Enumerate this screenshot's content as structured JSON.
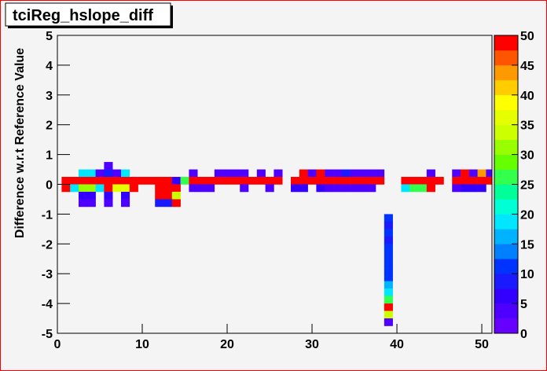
{
  "chart_data": {
    "type": "heatmap",
    "title": "tciReg_hslope_diff",
    "y_label": "Difference w.r.t Reference Value",
    "xlim": [
      0,
      51.2
    ],
    "ylim": [
      -5,
      5
    ],
    "zlim": [
      0,
      50
    ],
    "xticks": [
      0,
      10,
      20,
      30,
      40,
      50
    ],
    "yticks": [
      -5,
      -4,
      -3,
      -2,
      -1,
      0,
      1,
      2,
      3,
      4,
      5
    ],
    "zticks": [
      0,
      5,
      10,
      15,
      20,
      25,
      30,
      35,
      40,
      45,
      50
    ],
    "palette": [
      "#6600ff",
      "#4d00ff",
      "#3300ff",
      "#1a1aff",
      "#0033ff",
      "#0080ff",
      "#00b3ff",
      "#00e6ff",
      "#00ffd5",
      "#00ff99",
      "#33ff4d",
      "#66ff00",
      "#99ff00",
      "#ccff00",
      "#e6ff00",
      "#ffff00",
      "#ffcc00",
      "#ff9900",
      "#ff5500",
      "#ff0000"
    ],
    "cells": [
      [
        5.5,
        0.5,
        3
      ],
      [
        2.5,
        0.25,
        18
      ],
      [
        3.5,
        0.25,
        18
      ],
      [
        4.5,
        0.25,
        4
      ],
      [
        5.5,
        0.25,
        8
      ],
      [
        6.5,
        0.25,
        4
      ],
      [
        7.5,
        0.25,
        18
      ],
      [
        15.5,
        0.25,
        3
      ],
      [
        18.5,
        0.25,
        3
      ],
      [
        19.5,
        0.25,
        3
      ],
      [
        20.5,
        0.25,
        3
      ],
      [
        21.5,
        0.25,
        3
      ],
      [
        23.5,
        0.25,
        3
      ],
      [
        25.5,
        0.25,
        3
      ],
      [
        28.5,
        0.25,
        48
      ],
      [
        29.5,
        0.25,
        3
      ],
      [
        30.5,
        0.25,
        48
      ],
      [
        31.5,
        0.25,
        3
      ],
      [
        32.5,
        0.25,
        3
      ],
      [
        33.5,
        0.25,
        8
      ],
      [
        34.5,
        0.25,
        3
      ],
      [
        35.5,
        0.25,
        3
      ],
      [
        36.5,
        0.25,
        3
      ],
      [
        37.5,
        0.25,
        3
      ],
      [
        43.5,
        0.25,
        3
      ],
      [
        46.5,
        0.25,
        3
      ],
      [
        47.5,
        0.25,
        48
      ],
      [
        48.5,
        0.25,
        3
      ],
      [
        49.5,
        0.25,
        43
      ],
      [
        50.5,
        0.25,
        3
      ],
      [
        0.5,
        0,
        50
      ],
      [
        1.5,
        0,
        50
      ],
      [
        2.5,
        0,
        50
      ],
      [
        3.5,
        0,
        50
      ],
      [
        4.5,
        0,
        50
      ],
      [
        5.5,
        0,
        50
      ],
      [
        6.5,
        0,
        50
      ],
      [
        7.5,
        0,
        50
      ],
      [
        8.5,
        0,
        50
      ],
      [
        9.5,
        0,
        50
      ],
      [
        10.5,
        0,
        50
      ],
      [
        11.5,
        0,
        50
      ],
      [
        12.5,
        0,
        50
      ],
      [
        13.5,
        0,
        6
      ],
      [
        14.5,
        0,
        27
      ],
      [
        15.5,
        0,
        50
      ],
      [
        16.5,
        0,
        50
      ],
      [
        17.5,
        0,
        50
      ],
      [
        18.5,
        0,
        50
      ],
      [
        19.5,
        0,
        50
      ],
      [
        20.5,
        0,
        50
      ],
      [
        21.5,
        0,
        50
      ],
      [
        22.5,
        0,
        50
      ],
      [
        23.5,
        0,
        50
      ],
      [
        24.5,
        0,
        50
      ],
      [
        25.5,
        0,
        50
      ],
      [
        27.5,
        0,
        50
      ],
      [
        28.5,
        0,
        50
      ],
      [
        29.5,
        0,
        50
      ],
      [
        30.5,
        0,
        50
      ],
      [
        31.5,
        0,
        50
      ],
      [
        32.5,
        0,
        50
      ],
      [
        33.5,
        0,
        50
      ],
      [
        34.5,
        0,
        50
      ],
      [
        35.5,
        0,
        50
      ],
      [
        36.5,
        0,
        50
      ],
      [
        37.5,
        0,
        50
      ],
      [
        40.5,
        0,
        50
      ],
      [
        41.5,
        0,
        50
      ],
      [
        42.5,
        0,
        50
      ],
      [
        43.5,
        0,
        50
      ],
      [
        44.5,
        0,
        50
      ],
      [
        46.5,
        0,
        50
      ],
      [
        47.5,
        0,
        50
      ],
      [
        48.5,
        0,
        50
      ],
      [
        49.5,
        0,
        50
      ],
      [
        50.5,
        0,
        50
      ],
      [
        0.5,
        -0.25,
        50
      ],
      [
        1.5,
        -0.25,
        18
      ],
      [
        2.5,
        -0.25,
        32
      ],
      [
        3.5,
        -0.25,
        32
      ],
      [
        4.5,
        -0.25,
        18
      ],
      [
        5.5,
        -0.25,
        50
      ],
      [
        6.5,
        -0.25,
        36
      ],
      [
        7.5,
        -0.25,
        36
      ],
      [
        8.5,
        -0.25,
        50
      ],
      [
        11.5,
        -0.25,
        50
      ],
      [
        12.5,
        -0.25,
        50
      ],
      [
        13.5,
        -0.25,
        50
      ],
      [
        15.5,
        -0.25,
        3
      ],
      [
        16.5,
        -0.25,
        3
      ],
      [
        17.5,
        -0.25,
        3
      ],
      [
        21.5,
        -0.25,
        3
      ],
      [
        24.5,
        -0.25,
        3
      ],
      [
        27.5,
        -0.25,
        6
      ],
      [
        28.5,
        -0.25,
        6
      ],
      [
        30.5,
        -0.25,
        6
      ],
      [
        31.5,
        -0.25,
        3
      ],
      [
        32.5,
        -0.25,
        3
      ],
      [
        33.5,
        -0.25,
        3
      ],
      [
        34.5,
        -0.25,
        3
      ],
      [
        35.5,
        -0.25,
        3
      ],
      [
        36.5,
        -0.25,
        3
      ],
      [
        40.5,
        -0.25,
        18
      ],
      [
        41.5,
        -0.25,
        27
      ],
      [
        42.5,
        -0.25,
        27
      ],
      [
        43.5,
        -0.25,
        50
      ],
      [
        46.5,
        -0.25,
        3
      ],
      [
        47.5,
        -0.25,
        6
      ],
      [
        48.5,
        -0.25,
        6
      ],
      [
        49.5,
        -0.25,
        6
      ],
      [
        2.5,
        -0.5,
        6
      ],
      [
        3.5,
        -0.5,
        6
      ],
      [
        5.5,
        -0.5,
        6
      ],
      [
        7.5,
        -0.5,
        6
      ],
      [
        11.5,
        -0.5,
        50
      ],
      [
        12.5,
        -0.5,
        50
      ],
      [
        13.5,
        -0.5,
        33
      ],
      [
        2.5,
        -0.75,
        3
      ],
      [
        3.5,
        -0.75,
        3
      ],
      [
        5.5,
        -0.75,
        3
      ],
      [
        7.5,
        -0.75,
        3
      ],
      [
        11.5,
        -0.75,
        8
      ],
      [
        12.5,
        -0.75,
        8
      ],
      [
        13.5,
        -0.75,
        50
      ],
      [
        38.5,
        -1.25,
        10
      ],
      [
        38.5,
        -1.5,
        8
      ],
      [
        38.5,
        -1.75,
        10
      ],
      [
        38.5,
        -2,
        8
      ],
      [
        38.5,
        -2.25,
        10
      ],
      [
        38.5,
        -2.5,
        10
      ],
      [
        38.5,
        -2.75,
        10
      ],
      [
        38.5,
        -3,
        12
      ],
      [
        38.5,
        -3.25,
        10
      ],
      [
        38.5,
        -3.5,
        15
      ],
      [
        38.5,
        -3.75,
        18
      ],
      [
        38.5,
        -4,
        27
      ],
      [
        38.5,
        -4.25,
        48
      ],
      [
        38.5,
        -4.5,
        33
      ],
      [
        38.5,
        -4.75,
        3
      ]
    ]
  }
}
